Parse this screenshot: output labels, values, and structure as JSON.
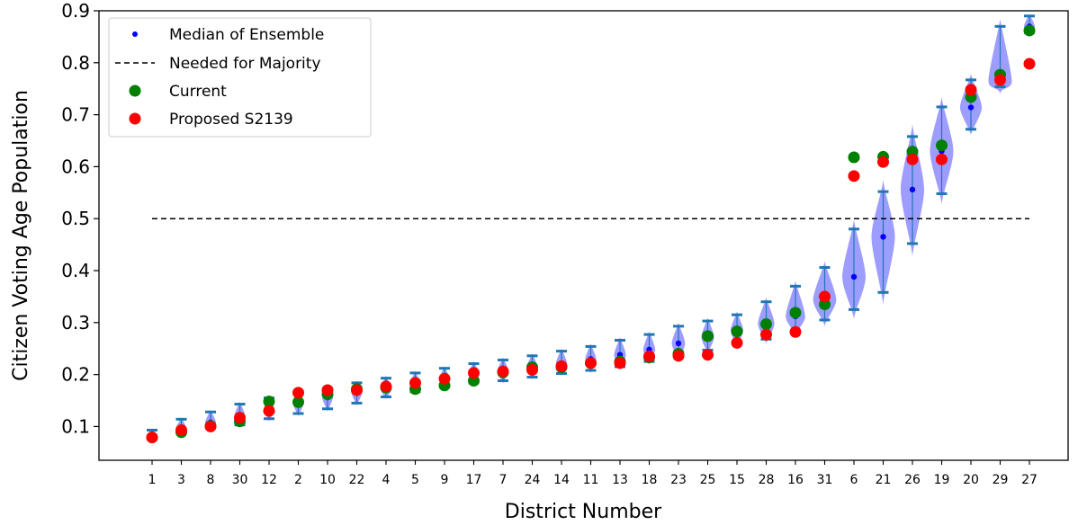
{
  "chart_data": {
    "type": "scatter",
    "xlabel": "District Number",
    "ylabel": "Citizen Voting Age Population",
    "ylim": [
      0.035,
      0.9
    ],
    "yticks": [
      0.1,
      0.2,
      0.3,
      0.4,
      0.5,
      0.6,
      0.7,
      0.8,
      0.9
    ],
    "categories": [
      "1",
      "3",
      "8",
      "30",
      "12",
      "2",
      "10",
      "22",
      "4",
      "5",
      "9",
      "17",
      "7",
      "24",
      "14",
      "11",
      "13",
      "18",
      "23",
      "25",
      "15",
      "28",
      "16",
      "31",
      "6",
      "21",
      "26",
      "19",
      "20",
      "29",
      "27"
    ],
    "threshold": 0.5,
    "grid": false,
    "legend_position": "top-left",
    "legend": {
      "median": "Median of Ensemble",
      "majority": "Needed for Majority",
      "current": "Current",
      "proposed": "Proposed S2139"
    },
    "colors": {
      "median": "#0000ff",
      "current": "#008000",
      "proposed": "#ff0000",
      "violin": "#8c8cff",
      "whisker": "#1f77b4",
      "majority": "#000000"
    },
    "series": [
      {
        "name": "Median of Ensemble",
        "values": [
          0.08,
          0.095,
          0.108,
          0.12,
          0.133,
          0.145,
          0.156,
          0.166,
          0.172,
          0.18,
          0.19,
          0.2,
          0.207,
          0.214,
          0.222,
          0.23,
          0.238,
          0.248,
          0.26,
          0.272,
          0.285,
          0.298,
          0.312,
          0.344,
          0.388,
          0.465,
          0.556,
          0.63,
          0.714,
          0.765,
          0.87
        ]
      },
      {
        "name": "Current",
        "values": [
          0.079,
          0.089,
          0.101,
          0.11,
          0.148,
          0.147,
          0.162,
          0.172,
          0.175,
          0.172,
          0.179,
          0.188,
          0.204,
          0.214,
          0.214,
          0.222,
          0.225,
          0.233,
          0.24,
          0.274,
          0.283,
          0.297,
          0.319,
          0.335,
          0.618,
          0.619,
          0.629,
          0.641,
          0.734,
          0.777,
          0.862
        ]
      },
      {
        "name": "Proposed S2139",
        "values": [
          0.079,
          0.093,
          0.1,
          0.117,
          0.13,
          0.165,
          0.17,
          0.17,
          0.177,
          0.184,
          0.192,
          0.203,
          0.206,
          0.209,
          0.216,
          0.222,
          0.222,
          0.235,
          0.236,
          0.238,
          0.261,
          0.277,
          0.282,
          0.35,
          0.582,
          0.609,
          0.614,
          0.614,
          0.748,
          0.767,
          0.798
        ]
      }
    ],
    "ensemble_min": [
      0.076,
      0.088,
      0.097,
      0.103,
      0.115,
      0.125,
      0.134,
      0.145,
      0.157,
      0.167,
      0.176,
      0.184,
      0.188,
      0.195,
      0.202,
      0.208,
      0.215,
      0.225,
      0.235,
      0.247,
      0.26,
      0.268,
      0.285,
      0.305,
      0.325,
      0.358,
      0.452,
      0.548,
      0.672,
      0.754,
      0.858
    ],
    "ensemble_max": [
      0.093,
      0.114,
      0.128,
      0.143,
      0.155,
      0.165,
      0.173,
      0.184,
      0.193,
      0.203,
      0.212,
      0.221,
      0.228,
      0.236,
      0.245,
      0.254,
      0.266,
      0.277,
      0.293,
      0.303,
      0.315,
      0.34,
      0.37,
      0.406,
      0.48,
      0.552,
      0.658,
      0.715,
      0.767,
      0.87,
      0.89
    ]
  }
}
